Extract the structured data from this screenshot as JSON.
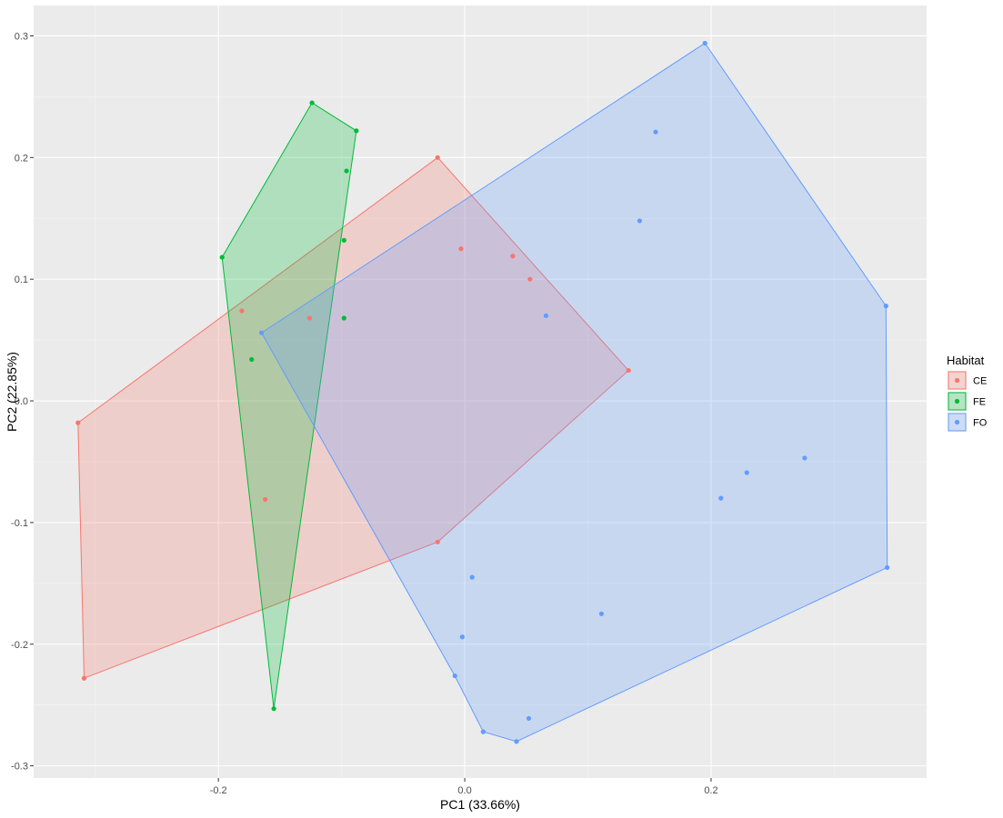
{
  "chart_data": {
    "type": "scatter",
    "xlabel": "PC1 (33.66%)",
    "ylabel": "PC2 (22.85%)",
    "xlim": [
      -0.35,
      0.375
    ],
    "ylim": [
      -0.31,
      0.325
    ],
    "x_ticks": [
      -0.2,
      0.0,
      0.2
    ],
    "x_tick_labels": [
      "-0.2",
      "0.0",
      "0.2"
    ],
    "y_ticks": [
      -0.3,
      -0.2,
      -0.1,
      0.0,
      0.1,
      0.2,
      0.3
    ],
    "y_tick_labels": [
      "-0.3",
      "-0.2",
      "-0.1",
      "0.0",
      "0.1",
      "0.2",
      "0.3"
    ],
    "grid": true,
    "legend": {
      "title": "Habitat",
      "position": "right",
      "entries": [
        "CE",
        "FE",
        "FO"
      ]
    },
    "series": [
      {
        "name": "CE",
        "color": "#F8766D",
        "points": [
          [
            -0.314,
            -0.018
          ],
          [
            -0.309,
            -0.228
          ],
          [
            -0.181,
            0.074
          ],
          [
            -0.162,
            -0.081
          ],
          [
            -0.126,
            0.068
          ],
          [
            -0.022,
            0.2
          ],
          [
            -0.003,
            0.125
          ],
          [
            0.039,
            0.119
          ],
          [
            0.053,
            0.1
          ],
          [
            0.133,
            0.025
          ],
          [
            -0.022,
            -0.116
          ]
        ],
        "hull": [
          [
            -0.314,
            -0.018
          ],
          [
            -0.022,
            0.2
          ],
          [
            0.133,
            0.025
          ],
          [
            -0.022,
            -0.116
          ],
          [
            -0.309,
            -0.228
          ]
        ]
      },
      {
        "name": "FE",
        "color": "#00BA38",
        "points": [
          [
            -0.197,
            0.118
          ],
          [
            -0.124,
            0.245
          ],
          [
            -0.088,
            0.222
          ],
          [
            -0.096,
            0.189
          ],
          [
            -0.098,
            0.132
          ],
          [
            -0.098,
            0.068
          ],
          [
            -0.173,
            0.034
          ],
          [
            -0.155,
            -0.253
          ]
        ],
        "hull": [
          [
            -0.197,
            0.118
          ],
          [
            -0.124,
            0.245
          ],
          [
            -0.088,
            0.222
          ],
          [
            -0.155,
            -0.253
          ]
        ]
      },
      {
        "name": "FO",
        "color": "#619CFF",
        "points": [
          [
            0.195,
            0.294
          ],
          [
            0.155,
            0.221
          ],
          [
            0.142,
            0.148
          ],
          [
            0.342,
            0.078
          ],
          [
            0.066,
            0.07
          ],
          [
            -0.165,
            0.056
          ],
          [
            0.276,
            -0.047
          ],
          [
            0.229,
            -0.059
          ],
          [
            0.208,
            -0.08
          ],
          [
            0.343,
            -0.137
          ],
          [
            0.006,
            -0.145
          ],
          [
            0.111,
            -0.175
          ],
          [
            -0.002,
            -0.194
          ],
          [
            -0.008,
            -0.226
          ],
          [
            0.052,
            -0.261
          ],
          [
            0.015,
            -0.272
          ],
          [
            0.042,
            -0.28
          ]
        ],
        "hull": [
          [
            0.195,
            0.294
          ],
          [
            0.342,
            0.078
          ],
          [
            0.343,
            -0.137
          ],
          [
            0.042,
            -0.28
          ],
          [
            0.015,
            -0.272
          ],
          [
            -0.008,
            -0.226
          ],
          [
            -0.165,
            0.056
          ]
        ]
      }
    ]
  }
}
